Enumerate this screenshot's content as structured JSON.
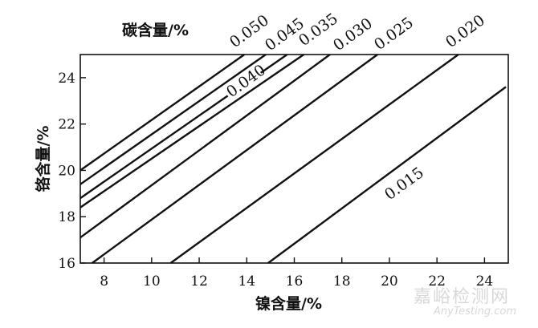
{
  "chart_data": {
    "type": "line",
    "title": "碳含量/%",
    "xlabel": "镍含量/%",
    "ylabel": "铬含量/%",
    "xlim": [
      7,
      25
    ],
    "ylim": [
      16,
      25
    ],
    "xticks": [
      8,
      10,
      12,
      14,
      16,
      18,
      20,
      22,
      24
    ],
    "yticks": [
      16,
      18,
      20,
      22,
      24
    ],
    "series": [
      {
        "name": "0.050",
        "x": [
          7.0,
          13.9
        ],
        "y": [
          20.0,
          25.0
        ]
      },
      {
        "name": "0.045",
        "x": [
          7.0,
          14.8
        ],
        "y": [
          19.4,
          25.0
        ]
      },
      {
        "name": "0.040",
        "x": [
          7.0,
          15.7
        ],
        "y": [
          18.8,
          25.0
        ]
      },
      {
        "name": "0.035",
        "x": [
          7.0,
          16.4
        ],
        "y": [
          18.4,
          25.0
        ]
      },
      {
        "name": "0.030",
        "x": [
          7.0,
          17.5
        ],
        "y": [
          17.1,
          25.0
        ]
      },
      {
        "name": "0.025",
        "x": [
          7.5,
          19.5
        ],
        "y": [
          16.0,
          25.0
        ]
      },
      {
        "name": "0.020",
        "x": [
          10.8,
          22.9
        ],
        "y": [
          16.0,
          25.0
        ]
      },
      {
        "name": "0.015",
        "x": [
          14.9,
          24.9
        ],
        "y": [
          16.0,
          23.6
        ]
      }
    ],
    "grid": false
  },
  "watermark": {
    "cn": "嘉峪检测网",
    "en": "AnyTesting.com"
  }
}
